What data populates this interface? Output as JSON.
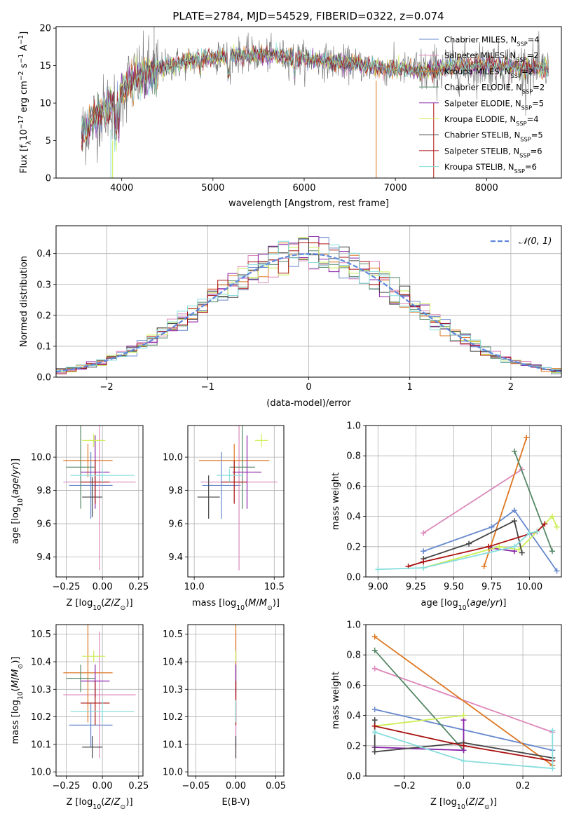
{
  "title": "PLATE=2784, MJD=54529, FIBERID=0322, z=0.074",
  "chart_data": [
    {
      "id": "spectrum",
      "type": "line",
      "xlabel": "wavelength [Angstrom, rest frame]",
      "ylabel": "Flux [f_λ10^-17 erg cm^-2 s^-1 A^-1]",
      "xlim": [
        3280,
        8820
      ],
      "ylim": [
        0,
        20.2
      ],
      "xticks": [
        "4000",
        "5000",
        "6000",
        "7000",
        "8000"
      ],
      "yticks": [
        "0",
        "5",
        "10",
        "15",
        "20"
      ],
      "grid": false,
      "legend_position": "top-right",
      "continuum": {
        "x": [
          3560,
          3700,
          3850,
          3950,
          4000,
          4100,
          4300,
          4500,
          4700,
          4900,
          5100,
          5300,
          5500,
          5700,
          5900,
          6100,
          6300,
          6500,
          6700,
          6900,
          7100,
          7300,
          7450,
          7600,
          7800,
          8000,
          8200,
          8400,
          8550,
          8680
        ],
        "y": [
          6.0,
          8.0,
          9.5,
          10.5,
          11.5,
          13.0,
          14.0,
          15.0,
          15.5,
          16.0,
          16.2,
          16.4,
          16.4,
          16.3,
          16.0,
          15.8,
          15.5,
          15.2,
          15.0,
          14.6,
          14.5,
          14.2,
          14.5,
          14.8,
          15.0,
          15.1,
          15.0,
          14.8,
          14.6,
          14.3
        ]
      },
      "series": [
        {
          "name": "Chabrier MILES, N_SSP=4",
          "color": "#6688cc"
        },
        {
          "name": "Salpeter MILES, N_SSP=2",
          "color": "#dd88bb"
        },
        {
          "name": "Kroupa MILES, N_SSP=2",
          "color": "#dd7722"
        },
        {
          "name": "Chabrier ELODIE, N_SSP=2",
          "color": "#558866"
        },
        {
          "name": "Salpeter ELODIE, N_SSP=5",
          "color": "#8822aa"
        },
        {
          "name": "Kroupa ELODIE, N_SSP=4",
          "color": "#ccee55"
        },
        {
          "name": "Chabrier STELIB, N_SSP=5",
          "color": "#444444"
        },
        {
          "name": "Salpeter STELIB, N_SSP=6",
          "color": "#aa1111"
        },
        {
          "name": "Kroupa STELIB, N_SSP=6",
          "color": "#88dddd"
        }
      ]
    },
    {
      "id": "residuals",
      "type": "line",
      "xlabel": "(data-model)/error",
      "ylabel": "Normed distribution",
      "xlim": [
        -2.5,
        2.5
      ],
      "ylim": [
        0,
        0.49
      ],
      "xticks": [
        -2,
        -1,
        0,
        1,
        2
      ],
      "yticks": [
        0.0,
        0.1,
        0.2,
        0.3,
        0.4
      ],
      "grid": true,
      "legend_position": "top-right",
      "legend": "N(0,1)",
      "gaussian": {
        "mu": 0,
        "sigma": 1,
        "color": "#5f87db"
      }
    },
    {
      "id": "age_vs_z",
      "type": "scatter",
      "xlabel": "Z [log10(Z/Z⊙)]",
      "ylabel": "age [log10(age/yr)]",
      "xlim": [
        -0.32,
        0.28
      ],
      "ylim": [
        9.28,
        10.19
      ],
      "xticks": [
        -0.25,
        0.0,
        0.25
      ],
      "xticklabels": [
        "−0.25",
        "0.00",
        "0.25"
      ],
      "yticks": [
        9.4,
        9.6,
        9.8,
        10.0
      ],
      "grid": true,
      "points": [
        {
          "x": -0.08,
          "y": 9.83,
          "xerr": 0.15,
          "yerr": 0.2,
          "color": "#6688cc"
        },
        {
          "x": -0.02,
          "y": 9.85,
          "xerr": 0.25,
          "yerr": 0.53,
          "color": "#dd88bb"
        },
        {
          "x": -0.1,
          "y": 9.98,
          "xerr": 0.17,
          "yerr": 0.1,
          "color": "#dd7722"
        },
        {
          "x": -0.15,
          "y": 9.94,
          "xerr": 0.1,
          "yerr": 0.25,
          "color": "#558866"
        },
        {
          "x": -0.05,
          "y": 9.91,
          "xerr": 0.1,
          "yerr": 0.22,
          "color": "#8822aa"
        },
        {
          "x": -0.06,
          "y": 10.1,
          "xerr": 0.08,
          "yerr": 0.04,
          "color": "#ccee55"
        },
        {
          "x": -0.07,
          "y": 9.76,
          "xerr": 0.07,
          "yerr": 0.12,
          "color": "#444444"
        },
        {
          "x": -0.05,
          "y": 9.85,
          "xerr": 0.1,
          "yerr": 0.13,
          "color": "#aa1111"
        },
        {
          "x": 0.0,
          "y": 9.89,
          "xerr": 0.22,
          "yerr": 0.04,
          "color": "#88dddd"
        }
      ]
    },
    {
      "id": "age_vs_mass",
      "type": "scatter",
      "xlabel": "mass [log10(M/M⊙)]",
      "ylabel": "",
      "xlim": [
        9.96,
        10.56
      ],
      "ylim": [
        9.28,
        10.19
      ],
      "xticks": [
        10.0,
        10.5
      ],
      "xticklabels": [
        "10.0",
        "10.5"
      ],
      "yticks": [
        9.4,
        9.6,
        9.8,
        10.0
      ],
      "grid": true,
      "points": [
        {
          "x": 10.17,
          "y": 9.83,
          "xerr": 0.12,
          "yerr": 0.2,
          "color": "#6688cc"
        },
        {
          "x": 10.28,
          "y": 9.85,
          "xerr": 0.24,
          "yerr": 0.53,
          "color": "#dd88bb"
        },
        {
          "x": 10.25,
          "y": 9.98,
          "xerr": 0.22,
          "yerr": 0.1,
          "color": "#dd7722"
        },
        {
          "x": 10.3,
          "y": 9.94,
          "xerr": 0.08,
          "yerr": 0.25,
          "color": "#558866"
        },
        {
          "x": 10.33,
          "y": 9.91,
          "xerr": 0.09,
          "yerr": 0.22,
          "color": "#8822aa"
        },
        {
          "x": 10.42,
          "y": 10.1,
          "xerr": 0.04,
          "yerr": 0.04,
          "color": "#ccee55"
        },
        {
          "x": 10.09,
          "y": 9.76,
          "xerr": 0.07,
          "yerr": 0.13,
          "color": "#444444"
        },
        {
          "x": 10.25,
          "y": 9.85,
          "xerr": 0.08,
          "yerr": 0.13,
          "color": "#aa1111"
        },
        {
          "x": 10.22,
          "y": 9.89,
          "xerr": 0.08,
          "yerr": 0.04,
          "color": "#88dddd"
        }
      ]
    },
    {
      "id": "weight_vs_age",
      "type": "line",
      "xlabel": "age [log10(age/yr)]",
      "ylabel": "mass weight",
      "xlim": [
        8.92,
        10.21
      ],
      "ylim": [
        0,
        1
      ],
      "xticks": [
        9.0,
        9.25,
        9.5,
        9.75,
        10.0
      ],
      "xticklabels": [
        "9.00",
        "9.25",
        "9.50",
        "9.75",
        "10.00"
      ],
      "yticks": [
        0.0,
        0.2,
        0.4,
        0.6,
        0.8,
        1.0
      ],
      "grid": true,
      "series": [
        {
          "color": "#6688cc",
          "x": [
            9.3,
            9.75,
            9.9,
            10.18
          ],
          "y": [
            0.17,
            0.33,
            0.44,
            0.04
          ]
        },
        {
          "color": "#dd88bb",
          "x": [
            9.3,
            9.95
          ],
          "y": [
            0.29,
            0.71
          ]
        },
        {
          "color": "#dd7722",
          "x": [
            9.7,
            9.98
          ],
          "y": [
            0.07,
            0.92
          ]
        },
        {
          "color": "#558866",
          "x": [
            9.9,
            10.15
          ],
          "y": [
            0.83,
            0.17
          ]
        },
        {
          "color": "#8822aa",
          "x": [
            9.75,
            9.9
          ],
          "y": [
            0.19,
            0.17
          ]
        },
        {
          "color": "#ccee55",
          "x": [
            9.3,
            9.8,
            9.93,
            10.15,
            10.18
          ],
          "y": [
            0.06,
            0.2,
            0.18,
            0.4,
            0.33
          ]
        },
        {
          "color": "#444444",
          "x": [
            9.3,
            9.6,
            9.9,
            9.95
          ],
          "y": [
            0.12,
            0.22,
            0.37,
            0.16
          ]
        },
        {
          "color": "#aa1111",
          "x": [
            9.2,
            9.3,
            9.73,
            10.05,
            10.1
          ],
          "y": [
            0.07,
            0.1,
            0.2,
            0.3,
            0.35
          ]
        },
        {
          "color": "#88dddd",
          "x": [
            9.0,
            9.3,
            9.9,
            10.0,
            10.05
          ],
          "y": [
            0.05,
            0.06,
            0.2,
            0.29,
            0.3
          ]
        }
      ]
    },
    {
      "id": "mass_vs_z",
      "type": "scatter",
      "xlabel": "Z [log10(Z/Z⊙)]",
      "ylabel": "mass [log10(M/M⊙)]",
      "xlim": [
        -0.32,
        0.28
      ],
      "ylim": [
        9.985,
        10.535
      ],
      "xticks": [
        -0.25,
        0.0,
        0.25
      ],
      "xticklabels": [
        "−0.25",
        "0.00",
        "0.25"
      ],
      "yticks": [
        10.0,
        10.1,
        10.2,
        10.3,
        10.4,
        10.5
      ],
      "grid": true,
      "points": [
        {
          "x": -0.08,
          "y": 10.17,
          "xerr": 0.15,
          "yerr": 0.08,
          "color": "#6688cc"
        },
        {
          "x": -0.02,
          "y": 10.28,
          "xerr": 0.25,
          "yerr": 0.23,
          "color": "#dd88bb"
        },
        {
          "x": -0.1,
          "y": 10.36,
          "xerr": 0.17,
          "yerr": 0.18,
          "color": "#dd7722"
        },
        {
          "x": -0.15,
          "y": 10.34,
          "xerr": 0.1,
          "yerr": 0.05,
          "color": "#558866"
        },
        {
          "x": -0.05,
          "y": 10.33,
          "xerr": 0.1,
          "yerr": 0.06,
          "color": "#8822aa"
        },
        {
          "x": -0.06,
          "y": 10.42,
          "xerr": 0.08,
          "yerr": 0.02,
          "color": "#ccee55"
        },
        {
          "x": -0.07,
          "y": 10.09,
          "xerr": 0.07,
          "yerr": 0.04,
          "color": "#444444"
        },
        {
          "x": -0.05,
          "y": 10.25,
          "xerr": 0.1,
          "yerr": 0.08,
          "color": "#aa1111"
        },
        {
          "x": 0.0,
          "y": 10.22,
          "xerr": 0.22,
          "yerr": 0.04,
          "color": "#88dddd"
        }
      ]
    },
    {
      "id": "mass_vs_ebv",
      "type": "scatter",
      "xlabel": "E(B-V)",
      "ylabel": "",
      "xlim": [
        -0.06,
        0.06
      ],
      "ylim": [
        9.985,
        10.535
      ],
      "xticks": [
        -0.05,
        0.0,
        0.05
      ],
      "xticklabels": [
        "−0.05",
        "0.00",
        "0.05"
      ],
      "yticks": [
        10.0,
        10.1,
        10.2,
        10.3,
        10.4,
        10.5
      ],
      "grid": true,
      "points": [
        {
          "x": 0,
          "y": 10.17,
          "xerr": 0,
          "yerr": 0.08,
          "color": "#6688cc"
        },
        {
          "x": 0,
          "y": 10.28,
          "xerr": 0,
          "yerr": 0.23,
          "color": "#dd88bb"
        },
        {
          "x": 0,
          "y": 10.36,
          "xerr": 0,
          "yerr": 0.18,
          "color": "#dd7722"
        },
        {
          "x": 0,
          "y": 10.34,
          "xerr": 0,
          "yerr": 0.05,
          "color": "#558866"
        },
        {
          "x": 0,
          "y": 10.33,
          "xerr": 0,
          "yerr": 0.06,
          "color": "#8822aa"
        },
        {
          "x": 0,
          "y": 10.42,
          "xerr": 0,
          "yerr": 0.02,
          "color": "#ccee55"
        },
        {
          "x": 0,
          "y": 10.09,
          "xerr": 0,
          "yerr": 0.04,
          "color": "#444444"
        },
        {
          "x": 0,
          "y": 10.25,
          "xerr": 0,
          "yerr": 0.08,
          "color": "#aa1111"
        },
        {
          "x": 0,
          "y": 10.22,
          "xerr": 0,
          "yerr": 0.04,
          "color": "#88dddd"
        }
      ]
    },
    {
      "id": "weight_vs_z",
      "type": "line",
      "xlabel": "Z [log10(Z/Z⊙)]",
      "ylabel": "mass weight",
      "xlim": [
        -0.33,
        0.33
      ],
      "ylim": [
        0,
        1
      ],
      "xticks": [
        -0.2,
        0.0,
        0.2
      ],
      "xticklabels": [
        "−0.2",
        "0.0",
        "0.2"
      ],
      "yticks": [
        0.0,
        0.2,
        0.4,
        0.6,
        0.8,
        1.0
      ],
      "grid": true,
      "series": [
        {
          "color": "#6688cc",
          "x": [
            -0.3,
            0.3
          ],
          "y": [
            0.44,
            0.17
          ]
        },
        {
          "color": "#dd88bb",
          "x": [
            -0.3,
            0.3
          ],
          "y": [
            0.71,
            0.29
          ]
        },
        {
          "color": "#dd7722",
          "x": [
            -0.3,
            0.3
          ],
          "y": [
            0.92,
            0.07
          ]
        },
        {
          "color": "#558866",
          "x": [
            -0.3,
            0.0
          ],
          "y": [
            0.83,
            0.17
          ]
        },
        {
          "color": "#8822aa",
          "x": [
            -0.3,
            0.0,
            0.0
          ],
          "y": [
            0.19,
            0.17,
            0.37
          ]
        },
        {
          "color": "#ccee55",
          "x": [
            -0.3,
            0.0
          ],
          "y": [
            0.33,
            0.4
          ]
        },
        {
          "color": "#444444",
          "x": [
            -0.3,
            -0.3,
            0.0,
            0.3,
            0.3
          ],
          "y": [
            0.37,
            0.16,
            0.22,
            0.12,
            0.1
          ]
        },
        {
          "color": "#aa1111",
          "x": [
            -0.3,
            0.0,
            0.3
          ],
          "y": [
            0.33,
            0.2,
            0.1
          ]
        },
        {
          "color": "#88dddd",
          "x": [
            -0.3,
            0.0,
            0.3,
            0.3
          ],
          "y": [
            0.29,
            0.1,
            0.05,
            0.3
          ]
        }
      ]
    }
  ]
}
